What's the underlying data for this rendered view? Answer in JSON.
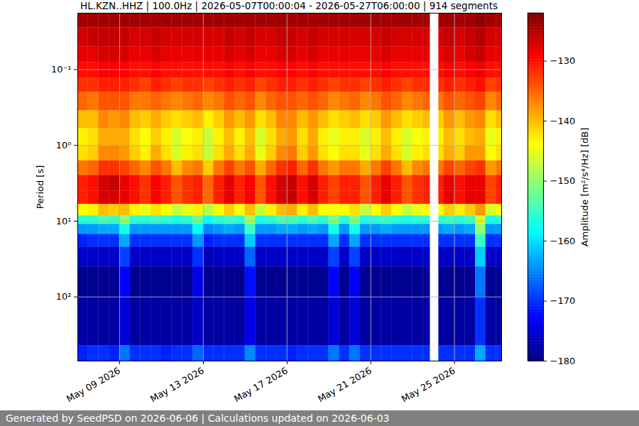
{
  "chart_data": {
    "type": "heatmap",
    "title": "HL.KZN..HHZ | 100.0Hz | 2026-05-07T00:00:04 - 2026-05-27T06:00:00 | 914 segments",
    "caption": "Generated by SeedPSD on 2026-06-06 | Calculations updated on 2026-06-03",
    "ylabel": "Period [s]",
    "log": "y",
    "grid": true,
    "xlim": [
      "2026-05-07T00:00:04",
      "2026-05-27T06:00:00"
    ],
    "xticks": [
      {
        "value": "2026-05-09",
        "label": "May 09 2026"
      },
      {
        "value": "2026-05-13",
        "label": "May 13 2026"
      },
      {
        "value": "2026-05-17",
        "label": "May 17 2026"
      },
      {
        "value": "2026-05-21",
        "label": "May 21 2026"
      },
      {
        "value": "2026-05-25",
        "label": "May 25 2026"
      }
    ],
    "ylim": [
      0.018,
      700
    ],
    "yticks": [
      {
        "value": 0.1,
        "label": "10⁻¹"
      },
      {
        "value": 1,
        "label": "10⁰"
      },
      {
        "value": 10,
        "label": "10¹"
      },
      {
        "value": 100,
        "label": "10²"
      }
    ],
    "colorbar": {
      "label": "Amplitude [m²/s⁴/Hz] [dB]",
      "range": [
        -180,
        -122
      ],
      "ticks": [
        {
          "value": -130,
          "label": "−130"
        },
        {
          "value": -140,
          "label": "−140"
        },
        {
          "value": -150,
          "label": "−150"
        },
        {
          "value": -160,
          "label": "−160"
        },
        {
          "value": -170,
          "label": "−170"
        },
        {
          "value": -180,
          "label": "−180"
        }
      ]
    },
    "x": [
      "2026-05-07T00:00:04",
      "2026-05-07T12:00:00",
      "2026-05-08T00:00:00",
      "2026-05-08T12:00:00",
      "2026-05-09T00:00:00",
      "2026-05-09T12:00:00",
      "2026-05-10T00:00:00",
      "2026-05-10T12:00:00",
      "2026-05-11T00:00:00",
      "2026-05-11T12:00:00",
      "2026-05-12T00:00:00",
      "2026-05-12T12:00:00",
      "2026-05-13T00:00:00",
      "2026-05-13T12:00:00",
      "2026-05-14T00:00:00",
      "2026-05-14T12:00:00",
      "2026-05-15T00:00:00",
      "2026-05-15T12:00:00",
      "2026-05-16T00:00:00",
      "2026-05-16T12:00:00",
      "2026-05-17T00:00:00",
      "2026-05-17T12:00:00",
      "2026-05-18T00:00:00",
      "2026-05-18T12:00:00",
      "2026-05-19T00:00:00",
      "2026-05-19T12:00:00",
      "2026-05-20T00:00:00",
      "2026-05-20T12:00:00",
      "2026-05-21T00:00:00",
      "2026-05-21T12:00:00",
      "2026-05-22T00:00:00",
      "2026-05-22T12:00:00",
      "2026-05-23T00:00:00",
      "2026-05-23T12:00:00",
      "2026-05-23T20:00:00",
      "2026-05-24T06:00:00",
      "2026-05-24T12:00:00",
      "2026-05-25T00:00:00",
      "2026-05-25T12:00:00",
      "2026-05-26T00:00:00",
      "2026-05-26T12:00:00",
      "2026-05-27T00:00:00"
    ],
    "y_edges": [
      0.018,
      0.028,
      0.05,
      0.08,
      0.13,
      0.2,
      0.35,
      0.6,
      1,
      1.6,
      2.5,
      4,
      6,
      8.5,
      11,
      15,
      22,
      40,
      100,
      440,
      700
    ],
    "z": [
      [
        -124,
        -127,
        -128,
        -130,
        -132,
        -135,
        -140,
        -143,
        -142,
        -136,
        -131,
        -131,
        -144,
        -156,
        -164,
        -171,
        -176,
        -179,
        -178,
        -171
      ],
      [
        -124,
        -126,
        -128,
        -130,
        -132,
        -136,
        -140,
        -142,
        -141,
        -135,
        -130,
        -130,
        -143,
        -156,
        -164,
        -170,
        -176,
        -179,
        -178,
        -170
      ],
      [
        -124,
        -126,
        -127,
        -129,
        -131,
        -134,
        -137,
        -139,
        -137,
        -132,
        -127,
        -127,
        -140,
        -154,
        -163,
        -170,
        -176,
        -179,
        -178,
        -170
      ],
      [
        -124,
        -126,
        -127,
        -129,
        -131,
        -134,
        -138,
        -139,
        -137,
        -132,
        -126,
        -127,
        -141,
        -155,
        -163,
        -170,
        -176,
        -179,
        -178,
        -171
      ],
      [
        -124,
        -126,
        -127,
        -129,
        -131,
        -134,
        -137,
        -139,
        -138,
        -133,
        -128,
        -128,
        -140,
        -150,
        -157,
        -163,
        -169,
        -173,
        -175,
        -166
      ],
      [
        -124,
        -127,
        -128,
        -130,
        -132,
        -136,
        -140,
        -142,
        -141,
        -135,
        -130,
        -130,
        -143,
        -156,
        -164,
        -170,
        -176,
        -179,
        -178,
        -170
      ],
      [
        -124,
        -127,
        -128,
        -130,
        -133,
        -136,
        -141,
        -144,
        -143,
        -137,
        -132,
        -132,
        -145,
        -156,
        -164,
        -170,
        -176,
        -179,
        -178,
        -170
      ],
      [
        -124,
        -126,
        -127,
        -129,
        -131,
        -135,
        -139,
        -141,
        -139,
        -134,
        -129,
        -129,
        -142,
        -155,
        -164,
        -170,
        -176,
        -179,
        -178,
        -170
      ],
      [
        -124,
        -127,
        -128,
        -130,
        -132,
        -136,
        -141,
        -143,
        -142,
        -136,
        -131,
        -131,
        -144,
        -156,
        -164,
        -170,
        -176,
        -179,
        -178,
        -171
      ],
      [
        -124,
        -127,
        -128,
        -130,
        -133,
        -137,
        -142,
        -146,
        -146,
        -140,
        -134,
        -134,
        -147,
        -157,
        -164,
        -170,
        -176,
        -179,
        -178,
        -170
      ],
      [
        -124,
        -127,
        -128,
        -130,
        -132,
        -136,
        -141,
        -144,
        -143,
        -137,
        -132,
        -132,
        -145,
        -156,
        -164,
        -170,
        -176,
        -179,
        -178,
        -170
      ],
      [
        -124,
        -127,
        -128,
        -130,
        -132,
        -135,
        -140,
        -143,
        -142,
        -136,
        -131,
        -131,
        -143,
        -152,
        -158,
        -164,
        -170,
        -174,
        -176,
        -167
      ],
      [
        -124,
        -127,
        -128,
        -130,
        -133,
        -137,
        -143,
        -147,
        -147,
        -141,
        -135,
        -135,
        -148,
        -158,
        -165,
        -171,
        -177,
        -179,
        -178,
        -170
      ],
      [
        -124,
        -127,
        -128,
        -130,
        -132,
        -136,
        -141,
        -143,
        -142,
        -136,
        -131,
        -131,
        -144,
        -156,
        -164,
        -170,
        -176,
        -179,
        -178,
        -170
      ],
      [
        -124,
        -126,
        -127,
        -129,
        -131,
        -134,
        -138,
        -140,
        -139,
        -133,
        -128,
        -128,
        -141,
        -155,
        -163,
        -170,
        -176,
        -179,
        -178,
        -170
      ],
      [
        -124,
        -127,
        -128,
        -130,
        -132,
        -135,
        -140,
        -143,
        -142,
        -136,
        -131,
        -131,
        -144,
        -156,
        -164,
        -170,
        -176,
        -179,
        -178,
        -170
      ],
      [
        -124,
        -126,
        -127,
        -129,
        -131,
        -134,
        -138,
        -140,
        -139,
        -134,
        -129,
        -129,
        -140,
        -149,
        -155,
        -161,
        -167,
        -172,
        -174,
        -165
      ],
      [
        -124,
        -127,
        -128,
        -130,
        -133,
        -137,
        -142,
        -146,
        -145,
        -139,
        -134,
        -134,
        -147,
        -157,
        -164,
        -170,
        -176,
        -179,
        -178,
        -170
      ],
      [
        -124,
        -127,
        -128,
        -130,
        -132,
        -135,
        -140,
        -142,
        -141,
        -135,
        -130,
        -130,
        -143,
        -156,
        -164,
        -170,
        -176,
        -179,
        -178,
        -170
      ],
      [
        -124,
        -126,
        -127,
        -129,
        -131,
        -134,
        -137,
        -139,
        -137,
        -132,
        -127,
        -127,
        -140,
        -154,
        -163,
        -170,
        -176,
        -179,
        -178,
        -170
      ],
      [
        -124,
        -126,
        -127,
        -129,
        -131,
        -134,
        -137,
        -138,
        -136,
        -131,
        -126,
        -126,
        -139,
        -154,
        -163,
        -170,
        -176,
        -179,
        -178,
        -171
      ],
      [
        -124,
        -127,
        -128,
        -130,
        -132,
        -135,
        -140,
        -142,
        -141,
        -135,
        -130,
        -130,
        -143,
        -156,
        -164,
        -170,
        -176,
        -179,
        -178,
        -170
      ],
      [
        -124,
        -126,
        -127,
        -129,
        -131,
        -134,
        -138,
        -139,
        -138,
        -132,
        -127,
        -127,
        -140,
        -154,
        -163,
        -170,
        -176,
        -179,
        -178,
        -170
      ],
      [
        -124,
        -127,
        -128,
        -130,
        -132,
        -135,
        -140,
        -143,
        -142,
        -136,
        -131,
        -131,
        -144,
        -156,
        -164,
        -170,
        -176,
        -179,
        -178,
        -170
      ],
      [
        -124,
        -127,
        -128,
        -130,
        -133,
        -137,
        -142,
        -145,
        -144,
        -138,
        -133,
        -133,
        -144,
        -151,
        -157,
        -163,
        -169,
        -173,
        -175,
        -166
      ],
      [
        -124,
        -127,
        -128,
        -130,
        -132,
        -136,
        -141,
        -143,
        -142,
        -136,
        -131,
        -131,
        -144,
        -156,
        -164,
        -170,
        -176,
        -179,
        -178,
        -170
      ],
      [
        -124,
        -127,
        -128,
        -130,
        -132,
        -135,
        -140,
        -143,
        -142,
        -136,
        -131,
        -131,
        -142,
        -151,
        -157,
        -163,
        -169,
        -173,
        -175,
        -166
      ],
      [
        -124,
        -127,
        -128,
        -130,
        -133,
        -137,
        -142,
        -146,
        -145,
        -139,
        -134,
        -134,
        -147,
        -157,
        -164,
        -170,
        -176,
        -179,
        -178,
        -170
      ],
      [
        -124,
        -127,
        -128,
        -130,
        -132,
        -136,
        -141,
        -143,
        -142,
        -136,
        -131,
        -131,
        -144,
        -156,
        -164,
        -170,
        -176,
        -179,
        -178,
        -170
      ],
      [
        -124,
        -126,
        -127,
        -129,
        -131,
        -134,
        -138,
        -140,
        -139,
        -133,
        -128,
        -128,
        -141,
        -155,
        -163,
        -170,
        -176,
        -179,
        -178,
        -170
      ],
      [
        -124,
        -127,
        -128,
        -130,
        -132,
        -135,
        -140,
        -143,
        -142,
        -136,
        -131,
        -131,
        -144,
        -156,
        -164,
        -170,
        -176,
        -179,
        -178,
        -170
      ],
      [
        -124,
        -127,
        -128,
        -130,
        -133,
        -137,
        -142,
        -146,
        -146,
        -140,
        -134,
        -134,
        -147,
        -157,
        -164,
        -170,
        -176,
        -179,
        -178,
        -170
      ],
      [
        -124,
        -127,
        -128,
        -130,
        -132,
        -136,
        -141,
        -144,
        -143,
        -137,
        -132,
        -132,
        -145,
        -156,
        -164,
        -170,
        -176,
        -179,
        -178,
        -170
      ],
      [
        -124,
        -127,
        -128,
        -130,
        -132,
        -135,
        -140,
        -143,
        -142,
        -136,
        -131,
        -131,
        -144,
        -156,
        -164,
        -170,
        -176,
        -179,
        -178,
        -170
      ],
      null,
      [
        -124,
        -127,
        -128,
        -130,
        -132,
        -136,
        -141,
        -143,
        -142,
        -136,
        -131,
        -131,
        -144,
        -156,
        -164,
        -170,
        -176,
        -179,
        -178,
        -170
      ],
      [
        -124,
        -126,
        -127,
        -129,
        -131,
        -134,
        -138,
        -140,
        -139,
        -133,
        -128,
        -128,
        -141,
        -155,
        -163,
        -170,
        -176,
        -179,
        -178,
        -170
      ],
      [
        -124,
        -127,
        -128,
        -130,
        -132,
        -135,
        -140,
        -142,
        -141,
        -135,
        -130,
        -130,
        -143,
        -156,
        -164,
        -170,
        -176,
        -179,
        -178,
        -170
      ],
      [
        -124,
        -126,
        -127,
        -129,
        -131,
        -134,
        -138,
        -140,
        -138,
        -133,
        -128,
        -128,
        -141,
        -155,
        -163,
        -170,
        -176,
        -179,
        -178,
        -170
      ],
      [
        -123,
        -125,
        -126,
        -128,
        -130,
        -133,
        -137,
        -139,
        -138,
        -132,
        -128,
        -128,
        -138,
        -146,
        -150,
        -155,
        -161,
        -166,
        -170,
        -163
      ],
      [
        -124,
        -127,
        -128,
        -130,
        -133,
        -137,
        -142,
        -145,
        -144,
        -138,
        -133,
        -133,
        -146,
        -157,
        -164,
        -170,
        -176,
        -179,
        -178,
        -170
      ],
      [
        -124,
        -127,
        -128,
        -130,
        -132,
        -135,
        -140,
        -143,
        -142,
        -136,
        -131,
        -131,
        -144,
        -156,
        -164,
        -170,
        -176,
        -179,
        -178,
        -170
      ]
    ]
  }
}
